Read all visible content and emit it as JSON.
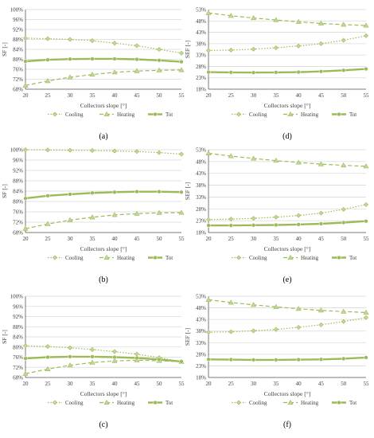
{
  "figure": {
    "panels": [
      {
        "label": "(a)"
      },
      {
        "label": "(d)"
      },
      {
        "label": "(b)"
      },
      {
        "label": "(e)"
      },
      {
        "label": "(c)"
      },
      {
        "label": "(f)"
      }
    ]
  },
  "colors": {
    "series": "#9bbb59",
    "grid": "#d9d9d9",
    "axis": "#595959",
    "text": "#404040"
  },
  "chart_data": [
    {
      "panel": "(a)",
      "type": "line",
      "x": [
        20,
        25,
        30,
        35,
        40,
        45,
        50,
        55
      ],
      "ylim": [
        68,
        100
      ],
      "yticks": [
        "68%",
        "72%",
        "76%",
        "80%",
        "84%",
        "88%",
        "92%",
        "96%",
        "100%"
      ],
      "ylabel": "SF [-]",
      "xlabel": "Collectors slope [°]",
      "legend": [
        "Cooling",
        "Heating",
        "Tot"
      ],
      "legend_position": "bottom",
      "series": [
        {
          "name": "Cooling",
          "style": "dotted-diamond",
          "values": [
            88.5,
            88.3,
            88.0,
            87.5,
            86.5,
            85.5,
            84.0,
            82.5
          ]
        },
        {
          "name": "Heating",
          "style": "dashed-triangle",
          "values": [
            69.5,
            71.3,
            72.8,
            73.9,
            74.8,
            75.3,
            75.6,
            75.7
          ]
        },
        {
          "name": "Tot",
          "style": "solid-circle",
          "values": [
            79.2,
            79.8,
            80.1,
            80.2,
            80.2,
            80.0,
            79.6,
            79.0
          ]
        }
      ]
    },
    {
      "panel": "(d)",
      "type": "line",
      "x": [
        20,
        25,
        30,
        35,
        40,
        45,
        50,
        55
      ],
      "ylim": [
        18,
        53
      ],
      "yticks": [
        "18%",
        "23%",
        "28%",
        "33%",
        "38%",
        "43%",
        "48%",
        "53%"
      ],
      "ylabel": "SEF [-]",
      "xlabel": "Collectors slope [°]",
      "legend": [
        "Cooling",
        "Heating",
        "Tot"
      ],
      "legend_position": "bottom",
      "series": [
        {
          "name": "Cooling",
          "style": "dotted-diamond",
          "values": [
            35.0,
            35.2,
            35.6,
            36.2,
            37.0,
            38.0,
            39.5,
            41.5
          ]
        },
        {
          "name": "Heating",
          "style": "dashed-triangle",
          "values": [
            51.5,
            50.3,
            49.3,
            48.4,
            47.6,
            46.9,
            46.4,
            46.0
          ]
        },
        {
          "name": "Tot",
          "style": "solid-circle",
          "values": [
            25.5,
            25.4,
            25.3,
            25.4,
            25.5,
            25.8,
            26.3,
            26.9
          ]
        }
      ]
    },
    {
      "panel": "(b)",
      "type": "line",
      "x": [
        20,
        25,
        30,
        35,
        40,
        45,
        50,
        55
      ],
      "ylim": [
        68,
        100
      ],
      "yticks": [
        "68%",
        "72%",
        "76%",
        "80%",
        "84%",
        "88%",
        "92%",
        "96%",
        "100%"
      ],
      "ylabel": "SF [-]",
      "xlabel": "Collectors slope [°]",
      "legend": [
        "Cooling",
        "Heating",
        "Tot"
      ],
      "legend_position": "bottom",
      "series": [
        {
          "name": "Cooling",
          "style": "dotted-diamond",
          "values": [
            100.0,
            99.9,
            99.8,
            99.7,
            99.5,
            99.3,
            98.9,
            98.3
          ]
        },
        {
          "name": "Heating",
          "style": "dashed-triangle",
          "values": [
            69.5,
            71.3,
            72.8,
            73.9,
            74.8,
            75.3,
            75.6,
            75.7
          ]
        },
        {
          "name": "Tot",
          "style": "solid-circle",
          "values": [
            81.2,
            82.2,
            82.8,
            83.3,
            83.6,
            83.8,
            83.8,
            83.6
          ]
        }
      ]
    },
    {
      "panel": "(e)",
      "type": "line",
      "x": [
        20,
        25,
        30,
        35,
        40,
        45,
        50,
        55
      ],
      "ylim": [
        18,
        53
      ],
      "yticks": [
        "18%",
        "23%",
        "28%",
        "33%",
        "38%",
        "43%",
        "48%",
        "53%"
      ],
      "ylabel": "SEF [-]",
      "xlabel": "Collectors slope [°]",
      "legend": [
        "Cooling",
        "Heating",
        "Tot"
      ],
      "legend_position": "bottom",
      "series": [
        {
          "name": "Cooling",
          "style": "dotted-diamond",
          "values": [
            23.5,
            23.7,
            24.0,
            24.5,
            25.2,
            26.2,
            27.8,
            29.8
          ]
        },
        {
          "name": "Heating",
          "style": "dashed-triangle",
          "values": [
            51.5,
            50.3,
            49.3,
            48.4,
            47.6,
            46.9,
            46.4,
            46.0
          ]
        },
        {
          "name": "Tot",
          "style": "solid-circle",
          "values": [
            21.0,
            21.0,
            21.1,
            21.2,
            21.4,
            21.7,
            22.2,
            22.8
          ]
        }
      ]
    },
    {
      "panel": "(c)",
      "type": "line",
      "x": [
        20,
        25,
        30,
        35,
        40,
        45,
        50,
        55
      ],
      "ylim": [
        68,
        100
      ],
      "yticks": [
        "68%",
        "72%",
        "76%",
        "80%",
        "84%",
        "88%",
        "92%",
        "96%",
        "100%"
      ],
      "ylabel": "SF [-]",
      "xlabel": "Collectors slope [°]",
      "legend": [
        "Cooling",
        "Heating",
        "Tot"
      ],
      "legend_position": "bottom",
      "series": [
        {
          "name": "Cooling",
          "style": "dotted-diamond",
          "values": [
            80.5,
            80.2,
            79.7,
            79.0,
            78.2,
            77.2,
            75.8,
            74.2
          ]
        },
        {
          "name": "Heating",
          "style": "dashed-triangle",
          "values": [
            69.5,
            71.3,
            72.8,
            73.9,
            74.5,
            74.8,
            74.6,
            74.2
          ]
        },
        {
          "name": "Tot",
          "style": "solid-circle",
          "values": [
            75.5,
            76.0,
            76.2,
            76.2,
            76.0,
            75.7,
            75.1,
            74.3
          ]
        }
      ]
    },
    {
      "panel": "(f)",
      "type": "line",
      "x": [
        20,
        25,
        30,
        35,
        40,
        45,
        50,
        55
      ],
      "ylim": [
        18,
        53
      ],
      "yticks": [
        "18%",
        "23%",
        "28%",
        "33%",
        "38%",
        "43%",
        "48%",
        "53%"
      ],
      "ylabel": "SEF [-]",
      "xlabel": "Collectors slope [°]",
      "legend": [
        "Cooling",
        "Heating",
        "Tot"
      ],
      "legend_position": "bottom",
      "series": [
        {
          "name": "Cooling",
          "style": "dotted-diamond",
          "values": [
            37.5,
            37.7,
            38.1,
            38.7,
            39.6,
            40.7,
            42.1,
            43.8
          ]
        },
        {
          "name": "Heating",
          "style": "dashed-triangle",
          "values": [
            51.5,
            50.3,
            49.3,
            48.4,
            47.6,
            46.9,
            46.4,
            46.0
          ]
        },
        {
          "name": "Tot",
          "style": "solid-circle",
          "values": [
            25.8,
            25.7,
            25.6,
            25.6,
            25.7,
            25.8,
            26.1,
            26.6
          ]
        }
      ]
    }
  ]
}
